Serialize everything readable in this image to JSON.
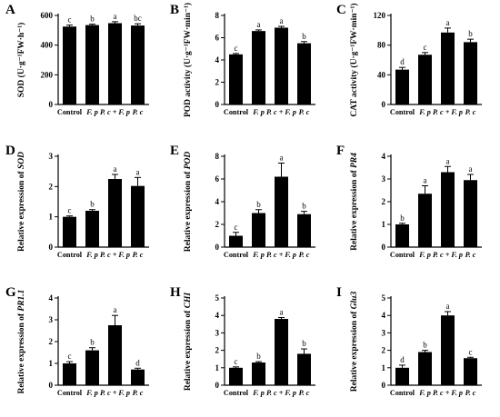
{
  "chart_data": [
    {
      "type": "bar",
      "letter": "A",
      "ylabel": "SOD (U·g⁻¹FW·h⁻¹)",
      "categories": [
        "Control",
        "F. p",
        "P. c + F. p",
        "P. c"
      ],
      "values": [
        525,
        535,
        548,
        532
      ],
      "errors": [
        10,
        6,
        10,
        12
      ],
      "significance": [
        "c",
        "b",
        "a",
        "bc"
      ],
      "ylim": [
        0,
        600
      ],
      "yticks": [
        0,
        200,
        400,
        600
      ]
    },
    {
      "type": "bar",
      "letter": "B",
      "ylabel": "POD activity (U·g⁻¹FW·min⁻¹)",
      "categories": [
        "Control",
        "F. p",
        "P. c + F. p",
        "P. c"
      ],
      "values": [
        4.5,
        6.6,
        6.9,
        5.5
      ],
      "errors": [
        0.08,
        0.1,
        0.12,
        0.15
      ],
      "significance": [
        "c",
        "a",
        "a",
        "b"
      ],
      "ylim": [
        0,
        8
      ],
      "yticks": [
        0,
        2,
        4,
        6,
        8
      ]
    },
    {
      "type": "bar",
      "letter": "C",
      "ylabel": "CAT activity (U·g⁻¹FW·min⁻¹)",
      "categories": [
        "Control",
        "F. p",
        "P. c + F. p",
        "P. c"
      ],
      "values": [
        47,
        67,
        97,
        84
      ],
      "errors": [
        3,
        3,
        6,
        4
      ],
      "significance": [
        "d",
        "c",
        "a",
        "b"
      ],
      "ylim": [
        0,
        120
      ],
      "yticks": [
        0,
        40,
        80,
        120
      ]
    },
    {
      "type": "bar",
      "letter": "D",
      "ylabel": "Relative expression of",
      "gene": "SOD",
      "categories": [
        "Control",
        "F. p",
        "P. c + F. p",
        "P. c"
      ],
      "values": [
        1.0,
        1.2,
        2.25,
        2.02
      ],
      "errors": [
        0.03,
        0.04,
        0.15,
        0.28
      ],
      "significance": [
        "c",
        "b",
        "a",
        "a"
      ],
      "ylim": [
        0,
        3
      ],
      "yticks": [
        0,
        1,
        2,
        3
      ]
    },
    {
      "type": "bar",
      "letter": "E",
      "ylabel": "Relative expression of",
      "gene": "POD",
      "categories": [
        "Control",
        "F. p",
        "P. c + F. p",
        "P. c"
      ],
      "values": [
        1.0,
        3.0,
        6.2,
        2.9
      ],
      "errors": [
        0.3,
        0.3,
        1.2,
        0.25
      ],
      "significance": [
        "c",
        "b",
        "a",
        "b"
      ],
      "ylim": [
        0,
        8
      ],
      "yticks": [
        0,
        2,
        4,
        6,
        8
      ]
    },
    {
      "type": "bar",
      "letter": "F",
      "ylabel": "Relative expression of",
      "gene": "PR4",
      "categories": [
        "Control",
        "F. p",
        "P. c + F. p",
        "P. c"
      ],
      "values": [
        1.0,
        2.35,
        3.3,
        2.95
      ],
      "errors": [
        0.05,
        0.35,
        0.25,
        0.25
      ],
      "significance": [
        "b",
        "a",
        "a",
        "a"
      ],
      "ylim": [
        0,
        4
      ],
      "yticks": [
        0,
        1,
        2,
        3,
        4
      ]
    },
    {
      "type": "bar",
      "letter": "G",
      "ylabel": "Relative expression of",
      "gene": "PR1.1",
      "categories": [
        "Control",
        "F. p",
        "P. c + F. p",
        "P. c"
      ],
      "values": [
        1.0,
        1.6,
        2.75,
        0.72
      ],
      "errors": [
        0.08,
        0.12,
        0.45,
        0.06
      ],
      "significance": [
        "c",
        "b",
        "a",
        "d"
      ],
      "ylim": [
        0,
        4
      ],
      "yticks": [
        0,
        1,
        2,
        3,
        4
      ]
    },
    {
      "type": "bar",
      "letter": "H",
      "ylabel": "Relative expression of",
      "gene": "CHI",
      "categories": [
        "Control",
        "F. p",
        "P. c + F. p",
        "P. c"
      ],
      "values": [
        1.0,
        1.3,
        3.8,
        1.8
      ],
      "errors": [
        0.05,
        0.05,
        0.08,
        0.28
      ],
      "significance": [
        "c",
        "b",
        "a",
        "b"
      ],
      "ylim": [
        0,
        5
      ],
      "yticks": [
        0,
        1,
        2,
        3,
        4,
        5
      ]
    },
    {
      "type": "bar",
      "letter": "I",
      "ylabel": "Relative expression of",
      "gene": "Glu3",
      "categories": [
        "Control",
        "F. p",
        "P. c + F. p",
        "P. c"
      ],
      "values": [
        1.0,
        1.9,
        4.0,
        1.55
      ],
      "errors": [
        0.15,
        0.1,
        0.22,
        0.05
      ],
      "significance": [
        "d",
        "b",
        "a",
        "c"
      ],
      "ylim": [
        0,
        5
      ],
      "yticks": [
        0,
        1,
        2,
        3,
        4,
        5
      ]
    }
  ]
}
